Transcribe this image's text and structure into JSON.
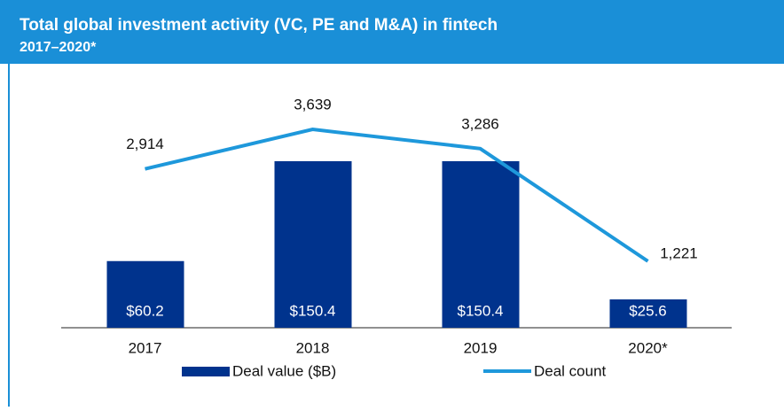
{
  "chart_data": {
    "type": "bar_line",
    "title": "Total global investment activity (VC, PE and M&A) in fintech",
    "subtitle": "2017–2020*",
    "categories": [
      "2017",
      "2018",
      "2019",
      "2020*"
    ],
    "series": [
      {
        "name": "Deal value ($B)",
        "type": "bar",
        "color": "#00338d",
        "values": [
          60.2,
          150.4,
          150.4,
          25.6
        ],
        "value_labels": [
          "$60.2",
          "$150.4",
          "$150.4",
          "$25.6"
        ]
      },
      {
        "name": "Deal count",
        "type": "line",
        "axis": "y2",
        "color": "#1e98db",
        "values": [
          2914,
          3639,
          3286,
          1221
        ],
        "value_labels": [
          "2,914",
          "3,639",
          "3,286",
          "1,221"
        ]
      }
    ],
    "ylim": [
      0,
      224
    ],
    "y2lim": [
      0,
      4550
    ]
  }
}
